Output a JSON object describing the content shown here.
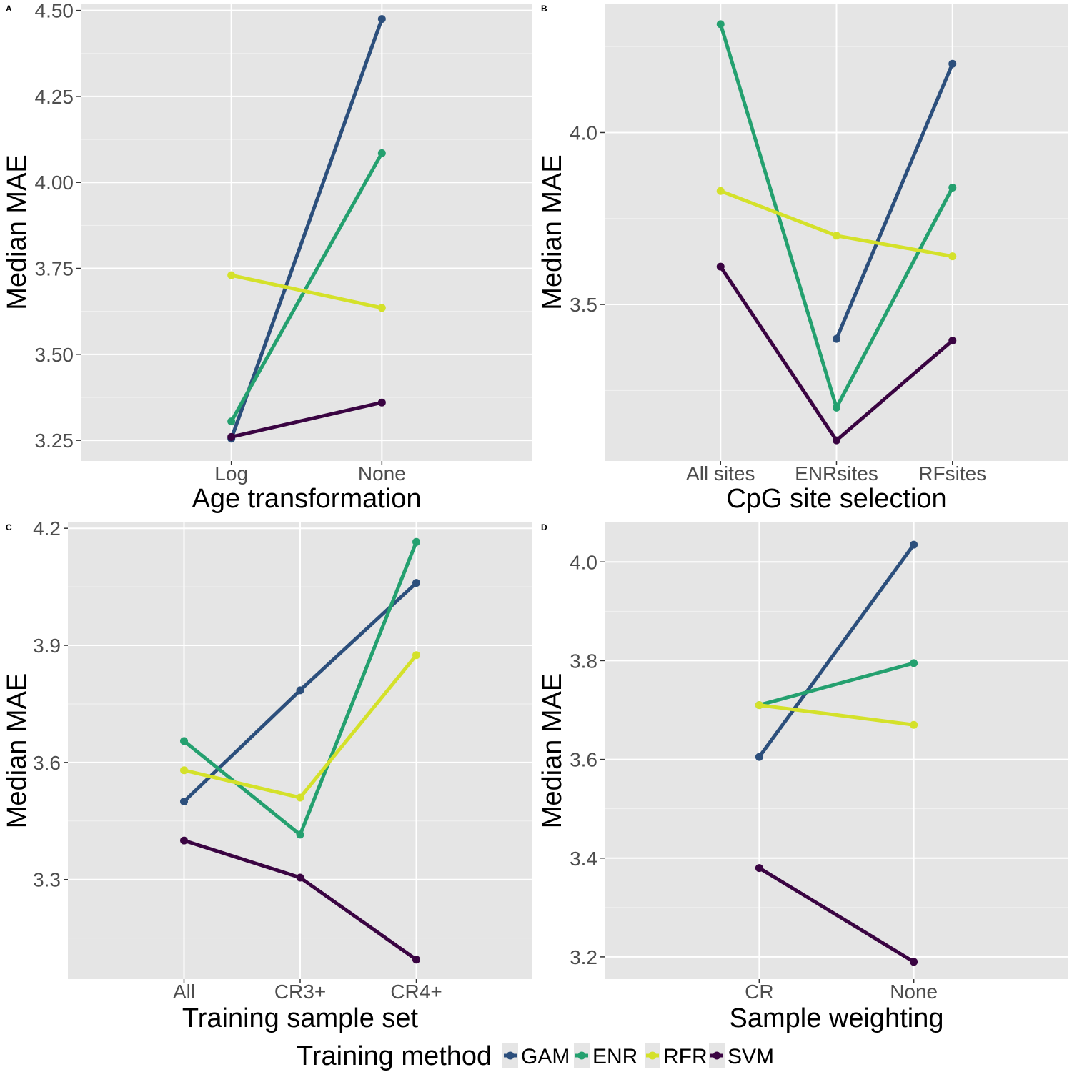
{
  "legend": {
    "title": "Training method",
    "entries": [
      {
        "name": "GAM",
        "color": "#2c4f7c"
      },
      {
        "name": "ENR",
        "color": "#24a06f"
      },
      {
        "name": "RFR",
        "color": "#d4e12a"
      },
      {
        "name": "SVM",
        "color": "#3a0442"
      }
    ]
  },
  "chart_data": [
    {
      "type": "line",
      "panel": "A",
      "xlabel": "Age transformation",
      "ylabel": "Median MAE",
      "categories": [
        "Log",
        "None"
      ],
      "ylim": [
        3.19,
        4.52
      ],
      "yticks": [
        3.25,
        3.5,
        3.75,
        4.0,
        4.25,
        4.5
      ],
      "ytick_labels": [
        "3.25",
        "3.50",
        "3.75",
        "4.00",
        "4.25",
        "4.50"
      ],
      "grid": true,
      "series": [
        {
          "name": "GAM",
          "values": [
            3.255,
            4.475
          ]
        },
        {
          "name": "ENR",
          "values": [
            3.305,
            4.085
          ]
        },
        {
          "name": "RFR",
          "values": [
            3.73,
            3.635
          ]
        },
        {
          "name": "SVM",
          "values": [
            3.26,
            3.36
          ]
        }
      ]
    },
    {
      "type": "line",
      "panel": "B",
      "xlabel": "CpG site selection",
      "ylabel": "Median MAE",
      "categories": [
        "All sites",
        "ENRsites",
        "RFsites"
      ],
      "ylim": [
        3.045,
        4.375
      ],
      "yticks": [
        3.5,
        4.0
      ],
      "ytick_labels": [
        "3.5",
        "4.0"
      ],
      "grid": true,
      "series": [
        {
          "name": "GAM",
          "values": [
            null,
            3.4,
            4.2
          ]
        },
        {
          "name": "ENR",
          "values": [
            4.315,
            3.2,
            3.84
          ]
        },
        {
          "name": "RFR",
          "values": [
            3.83,
            3.7,
            3.64
          ]
        },
        {
          "name": "SVM",
          "values": [
            3.61,
            3.105,
            3.395
          ]
        }
      ]
    },
    {
      "type": "line",
      "panel": "C",
      "xlabel": "Training sample set",
      "ylabel": "Median MAE",
      "categories": [
        "All",
        "CR3+",
        "CR4+"
      ],
      "ylim": [
        3.045,
        4.215
      ],
      "yticks": [
        3.3,
        3.6,
        3.9,
        4.2
      ],
      "ytick_labels": [
        "3.3",
        "3.6",
        "3.9",
        "4.2"
      ],
      "grid": true,
      "series": [
        {
          "name": "GAM",
          "values": [
            3.5,
            3.785,
            4.06
          ]
        },
        {
          "name": "ENR",
          "values": [
            3.655,
            3.415,
            4.165
          ]
        },
        {
          "name": "RFR",
          "values": [
            3.58,
            3.51,
            3.875
          ]
        },
        {
          "name": "SVM",
          "values": [
            3.4,
            3.305,
            3.095
          ]
        }
      ]
    },
    {
      "type": "line",
      "panel": "D",
      "xlabel": "Sample weighting",
      "ylabel": "Median MAE",
      "categories": [
        "CR",
        "None"
      ],
      "ylim": [
        3.155,
        4.08
      ],
      "yticks": [
        3.2,
        3.4,
        3.6,
        3.8,
        4.0
      ],
      "ytick_labels": [
        "3.2",
        "3.4",
        "3.6",
        "3.8",
        "4.0"
      ],
      "grid": true,
      "series": [
        {
          "name": "GAM",
          "values": [
            3.605,
            4.035
          ]
        },
        {
          "name": "ENR",
          "values": [
            3.71,
            3.795
          ]
        },
        {
          "name": "RFR",
          "values": [
            3.71,
            3.67
          ]
        },
        {
          "name": "SVM",
          "values": [
            3.38,
            3.19
          ]
        }
      ]
    }
  ]
}
